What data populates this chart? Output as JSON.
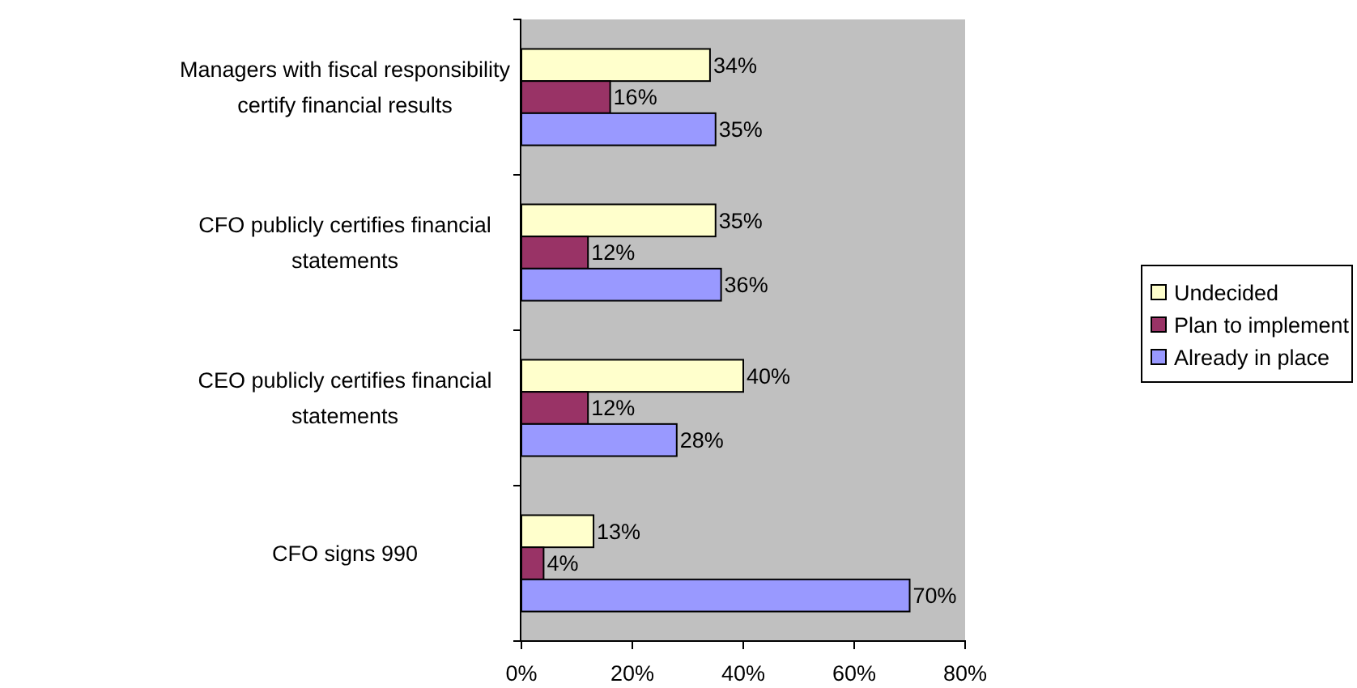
{
  "chart_data": {
    "type": "bar",
    "orientation": "horizontal",
    "categories": [
      "Managers with fiscal responsibility certify financial results",
      "CFO publicly certifies financial statements",
      "CEO publicly certifies financial statements",
      "CFO signs 990"
    ],
    "series": [
      {
        "name": "Undecided",
        "color": "#ffffcc",
        "values": [
          34,
          35,
          40,
          13
        ],
        "value_labels": [
          "34%",
          "35%",
          "40%",
          "13%"
        ]
      },
      {
        "name": "Plan to implement",
        "color": "#993366",
        "values": [
          16,
          12,
          12,
          4
        ],
        "value_labels": [
          "16%",
          "12%",
          "12%",
          "4%"
        ]
      },
      {
        "name": "Already in place",
        "color": "#9999ff",
        "values": [
          35,
          36,
          28,
          70
        ],
        "value_labels": [
          "35%",
          "36%",
          "28%",
          "70%"
        ]
      }
    ],
    "xlim": [
      0,
      80
    ],
    "xticks": [
      {
        "value": 0,
        "label": "0%"
      },
      {
        "value": 20,
        "label": "20%"
      },
      {
        "value": 40,
        "label": "40%"
      },
      {
        "value": 60,
        "label": "60%"
      },
      {
        "value": 80,
        "label": "80%"
      }
    ],
    "grid": false,
    "legend": "right"
  }
}
